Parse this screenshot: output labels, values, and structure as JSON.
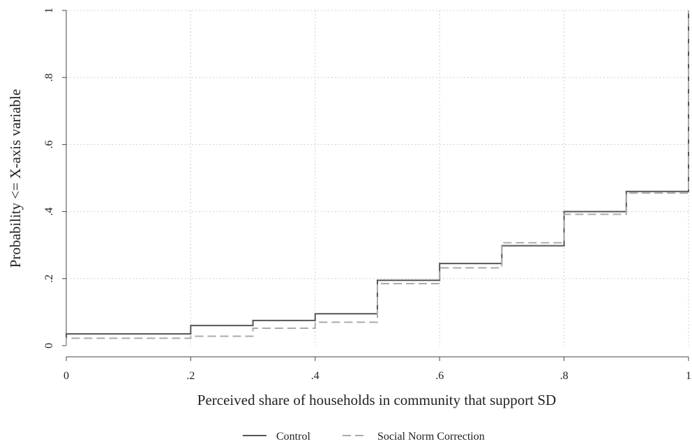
{
  "chart_data": {
    "type": "line",
    "title": "",
    "xlabel": "Perceived share of households in community that support SD",
    "ylabel": "Probability <= X-axis variable",
    "xlim": [
      0,
      1
    ],
    "ylim": [
      0,
      1
    ],
    "x_ticks": [
      {
        "value": 0,
        "label": "0"
      },
      {
        "value": 0.2,
        "label": ".2"
      },
      {
        "value": 0.4,
        "label": ".4"
      },
      {
        "value": 0.6,
        "label": ".6"
      },
      {
        "value": 0.8,
        "label": ".8"
      },
      {
        "value": 1,
        "label": "1"
      }
    ],
    "y_ticks": [
      {
        "value": 0,
        "label": "0"
      },
      {
        "value": 0.2,
        "label": ".2"
      },
      {
        "value": 0.4,
        "label": ".4"
      },
      {
        "value": 0.6,
        "label": ".6"
      },
      {
        "value": 0.8,
        "label": ".8"
      },
      {
        "value": 1,
        "label": "1"
      }
    ],
    "grid": true,
    "legend_position": "bottom",
    "series": [
      {
        "name": "Control",
        "style": "solid",
        "color": "#555555",
        "x": [
          0,
          0.2,
          0.3,
          0.4,
          0.5,
          0.6,
          0.7,
          0.8,
          0.9,
          1
        ],
        "y": [
          0.035,
          0.06,
          0.075,
          0.095,
          0.195,
          0.245,
          0.298,
          0.4,
          0.46,
          1.0
        ]
      },
      {
        "name": "Social Norm Correction",
        "style": "dashed",
        "color": "#aaaaaa",
        "x": [
          0,
          0.2,
          0.3,
          0.4,
          0.5,
          0.6,
          0.7,
          0.8,
          0.9,
          1
        ],
        "y": [
          0.022,
          0.028,
          0.052,
          0.07,
          0.185,
          0.232,
          0.307,
          0.392,
          0.455,
          1.0
        ]
      }
    ]
  }
}
